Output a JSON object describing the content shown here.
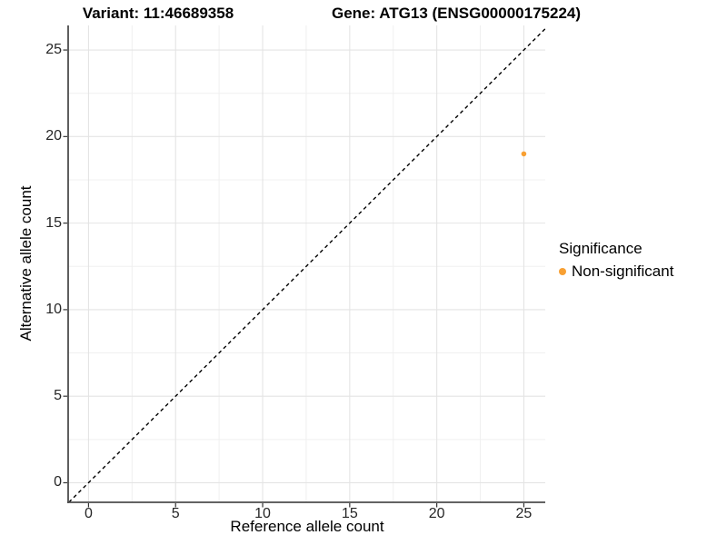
{
  "titles": {
    "variant": "Variant: 11:46689358",
    "gene": "Gene: ATG13 (ENSG00000175224)"
  },
  "chart_data": {
    "type": "scatter",
    "xlabel": "Reference allele count",
    "ylabel": "Alternative allele count",
    "xticks": [
      0,
      5,
      10,
      15,
      20,
      25
    ],
    "yticks": [
      0,
      5,
      10,
      15,
      20,
      25
    ],
    "xminor": [
      2.5,
      7.5,
      12.5,
      17.5,
      22.5
    ],
    "yminor": [
      2.5,
      7.5,
      12.5,
      17.5,
      22.5
    ],
    "xlim": [
      -1.17,
      26.23
    ],
    "ylim": [
      -1.13,
      26.42
    ],
    "grid": true,
    "identity_line": {
      "slope": 1,
      "intercept": 0,
      "style": "dashed",
      "color": "#000000"
    },
    "series": [
      {
        "name": "Non-significant",
        "color": "#F8A033",
        "points": [
          {
            "x": 25,
            "y": 19
          }
        ]
      }
    ],
    "legend": {
      "title": "Significance",
      "position": "right",
      "entries": [
        {
          "label": "Non-significant",
          "color": "#F8A033"
        }
      ]
    },
    "colors": {
      "grid_major": "#E4E4E4",
      "grid_minor": "#F0F0F0",
      "axis_line": "#4D4D4D",
      "tick_mark": "#333333"
    }
  }
}
